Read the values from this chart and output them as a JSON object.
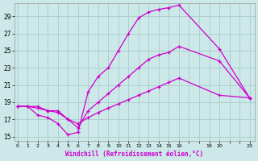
{
  "bg_color": "#cce8e8",
  "grid_color": "#aacccc",
  "line_color": "#cc00cc",
  "xlabel": "Windchill (Refroidissement éolien,°C)",
  "ylim": [
    14.5,
    30.5
  ],
  "xlim": [
    -0.3,
    23.5
  ],
  "yticks": [
    15,
    17,
    19,
    21,
    23,
    25,
    27,
    29
  ],
  "xtick_positions": [
    0,
    1,
    2,
    3,
    4,
    5,
    6,
    7,
    8,
    9,
    10,
    11,
    12,
    13,
    14,
    15,
    16,
    17,
    18,
    19,
    20,
    21,
    22,
    23
  ],
  "xtick_labels": [
    "0",
    "1",
    "2",
    "3",
    "4",
    "5",
    "6",
    "7",
    "8",
    "9",
    "10",
    "11",
    "12",
    "13",
    "14",
    "15",
    "16",
    "",
    "",
    "19",
    "20",
    "",
    "",
    "23"
  ],
  "line1_x": [
    0,
    1,
    2,
    3,
    4,
    5,
    6,
    7,
    8,
    9,
    10,
    11,
    12,
    13,
    14,
    15,
    16,
    20,
    23
  ],
  "line1_y": [
    18.5,
    18.5,
    17.5,
    17.2,
    16.5,
    15.2,
    15.5,
    20.2,
    22.0,
    23.0,
    25.0,
    27.0,
    28.8,
    29.5,
    29.8,
    30.0,
    30.3,
    25.2,
    19.5
  ],
  "line2_x": [
    0,
    1,
    2,
    3,
    4,
    5,
    6,
    7,
    8,
    9,
    10,
    11,
    12,
    13,
    14,
    15,
    16,
    20,
    23
  ],
  "line2_y": [
    18.5,
    18.5,
    18.5,
    18.0,
    18.0,
    17.0,
    16.0,
    18.0,
    19.0,
    20.0,
    21.0,
    22.0,
    23.0,
    24.0,
    24.5,
    24.8,
    25.5,
    23.8,
    19.5
  ],
  "line3_x": [
    0,
    1,
    2,
    3,
    4,
    5,
    6,
    7,
    8,
    9,
    10,
    11,
    12,
    13,
    14,
    15,
    16,
    20,
    23
  ],
  "line3_y": [
    18.5,
    18.5,
    18.3,
    18.0,
    17.8,
    17.0,
    16.5,
    17.2,
    17.8,
    18.3,
    18.8,
    19.3,
    19.8,
    20.3,
    20.8,
    21.3,
    21.8,
    19.8,
    19.5
  ]
}
